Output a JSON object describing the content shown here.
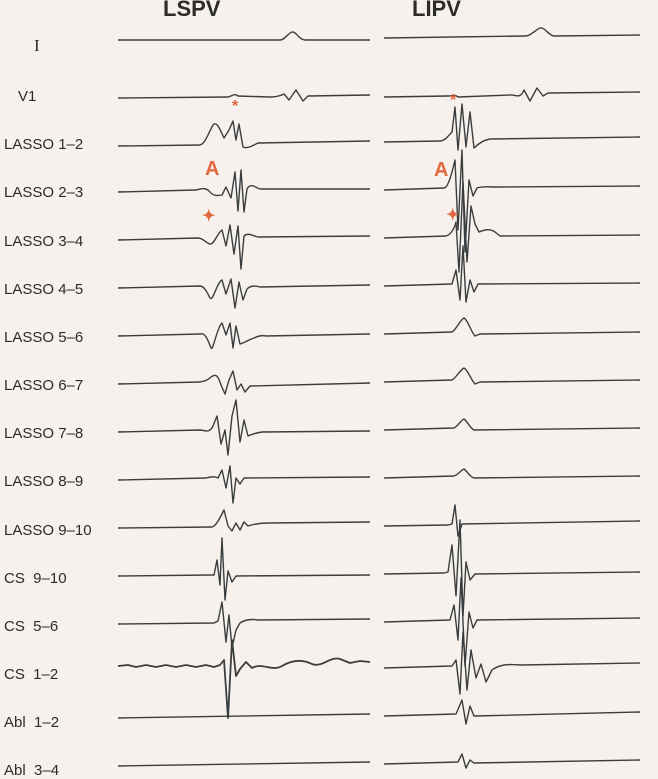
{
  "panels": [
    {
      "id": "lspv",
      "title": "LSPV"
    },
    {
      "id": "lipv",
      "title": "LIPV"
    }
  ],
  "leads": [
    {
      "label": "I"
    },
    {
      "label": "V1"
    },
    {
      "label": "LASSO 1–2"
    },
    {
      "label": "LASSO 2–3"
    },
    {
      "label": "LASSO 3–4"
    },
    {
      "label": "LASSO 4–5"
    },
    {
      "label": "LASSO 5–6"
    },
    {
      "label": "LASSO 6–7"
    },
    {
      "label": "LASSO 7–8"
    },
    {
      "label": "LASSO 8–9"
    },
    {
      "label": "LASSO 9–10"
    },
    {
      "label": "CS  9–10"
    },
    {
      "label": "CS  5–6"
    },
    {
      "label": "CS  1–2"
    },
    {
      "label": "Abl  1–2"
    },
    {
      "label": "Abl  3–4"
    }
  ],
  "markers": {
    "a_label": "A",
    "star_symbol": "*",
    "cross_symbol": "✦",
    "color": "#e2693f"
  }
}
